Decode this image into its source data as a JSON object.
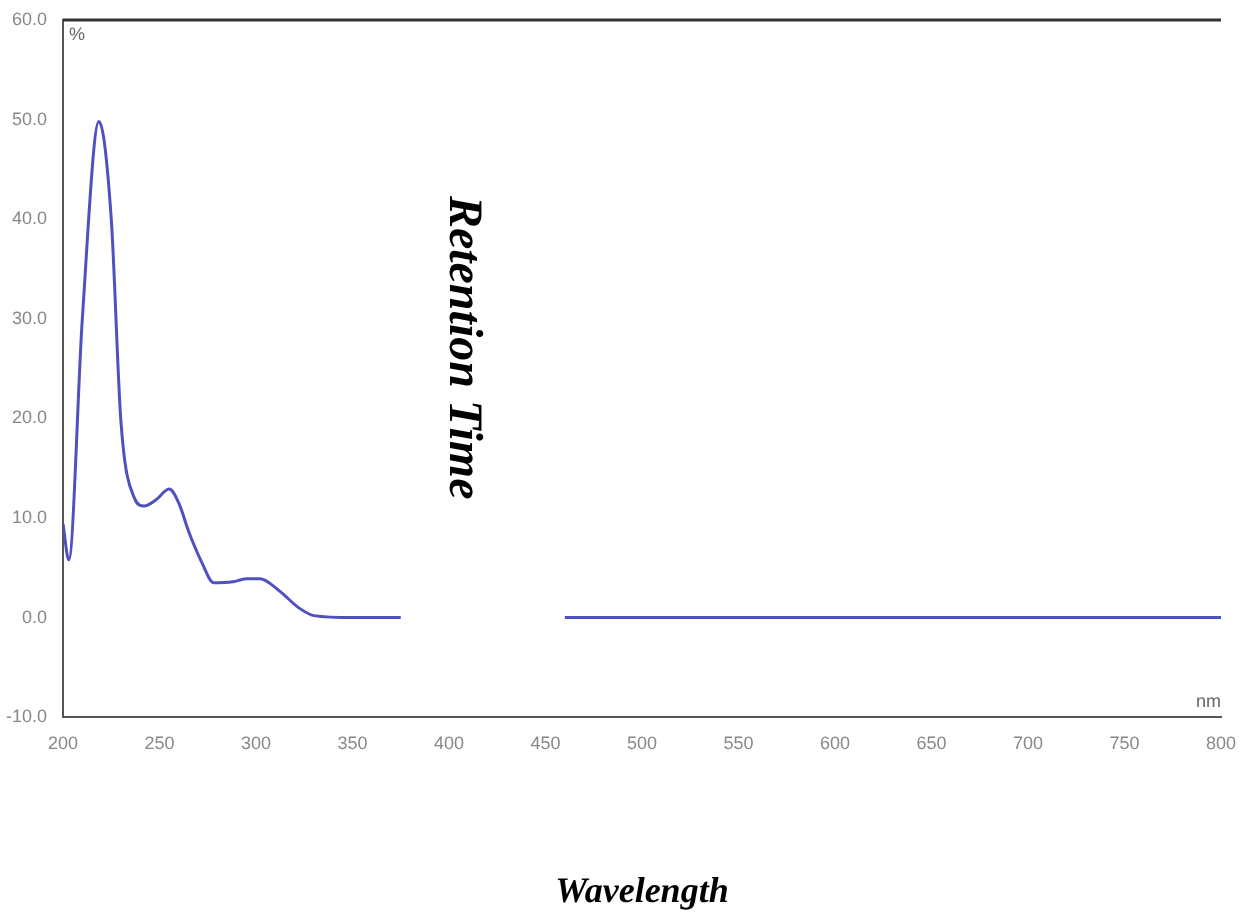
{
  "chart_data": {
    "type": "line",
    "xlabel": "Wavelength",
    "annotations": [
      "Retention Time",
      "%",
      "nm"
    ],
    "x": [
      200,
      203,
      210,
      218.6,
      225,
      230,
      237,
      242,
      248,
      255,
      260,
      265,
      272,
      278,
      288,
      295,
      302,
      312,
      322,
      330,
      350,
      375,
      417,
      460,
      600,
      750,
      800
    ],
    "series": [
      {
        "color": "#5050c0",
        "values": [
          9.4,
          5.8,
          30,
          49.8,
          40,
          19.7,
          12,
          11.2,
          11.8,
          12.9,
          11.5,
          8.7,
          5.5,
          3.5,
          3.6,
          3.9,
          3.9,
          2.7,
          1,
          0.2,
          0,
          0,
          null,
          0,
          0,
          0,
          0
        ]
      }
    ],
    "xlim": [
      200,
      800
    ],
    "xticks": [
      200,
      250,
      300,
      350,
      400,
      450,
      500,
      550,
      600,
      650,
      700,
      750,
      800
    ],
    "ylim": [
      -10,
      60
    ],
    "yticks": [
      {
        "value": -10,
        "label": "-10.0"
      },
      {
        "value": 0,
        "label": "0.0"
      },
      {
        "value": 10,
        "label": "10.0"
      },
      {
        "value": 20,
        "label": "20.0"
      },
      {
        "value": 30,
        "label": "30.0"
      },
      {
        "value": 40,
        "label": "40.0"
      },
      {
        "value": 50,
        "label": "50.0"
      },
      {
        "value": 60,
        "label": "60.0"
      }
    ],
    "grid": false,
    "legend": false,
    "marker": "none",
    "line_style": "solid"
  }
}
